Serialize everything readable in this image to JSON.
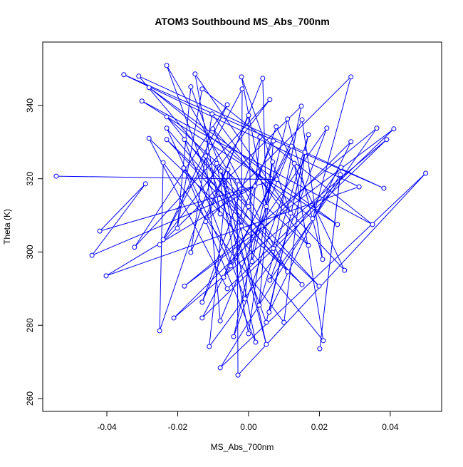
{
  "chart_data": {
    "type": "line",
    "title": "ATOM3 Southbound MS_Abs_700nm",
    "x_label": "MS_Abs_700nm",
    "y_label": "Theta (K)",
    "color": "#0000ff",
    "markers": true,
    "xlim": [
      -0.0581,
      0.0545
    ],
    "ylim": [
      256.5,
      357.3
    ],
    "xticks": [
      -0.04,
      -0.02,
      {
        "value": 0,
        "label": "0.00"
      },
      0.02,
      0.04
    ],
    "yticks": [
      260,
      280,
      300,
      320,
      340
    ],
    "x": [
      -0.0543,
      0.008,
      -0.042,
      -0.0291,
      -0.0442,
      0.0018,
      -0.0402,
      0.0312,
      -0.0352,
      0.0382,
      -0.031,
      0.0,
      -0.0231,
      -0.008,
      -0.0151,
      0.0119,
      -0.002,
      0.005,
      0.004,
      -0.0121,
      0.0289,
      0.0181,
      -0.0281,
      0.0251,
      -0.0301,
      0.035,
      -0.0131,
      -0.0201,
      -0.0163,
      -0.002,
      -0.0018,
      -0.0241,
      -0.006,
      -0.0322,
      0.006,
      -0.0251,
      0.0149,
      0.007,
      -0.0231,
      0.0169,
      -0.0103,
      -0.0163,
      0.0,
      0.001,
      0.011,
      0.0209,
      0.0151,
      -0.005,
      -0.0231,
      0.011,
      -0.0101,
      0.0271,
      0.0078,
      -0.007,
      0.0221,
      0.006,
      0.0362,
      -0.0181,
      0.041,
      -0.006,
      -0.0281,
      0.0151,
      -0.0231,
      0.0199,
      -0.0181,
      -0.001,
      0.0032,
      -0.0131,
      0.007,
      0.003,
      0.0169,
      0.0058,
      0.0289,
      -0.0211,
      0.039,
      -0.0131,
      0.0121,
      -0.008,
      -0.0121,
      0.005,
      0.0159,
      0.01,
      -0.0241,
      -0.0251,
      -0.009,
      0.0,
      0.0068,
      -0.0042,
      0.0129,
      0.0211,
      -0.0183,
      0.002,
      -0.0078,
      0.005,
      -0.0058,
      -0.0111,
      0.0261,
      0.0201,
      0.0259,
      -0.008,
      0.05,
      -0.003,
      -0.0032
    ],
    "values": [
      320.7,
      319.8,
      305.7,
      318.6,
      299.1,
      318.0,
      293.5,
      317.8,
      348.4,
      317.4,
      348.0,
      312.4,
      350.9,
      310.4,
      348.6,
      310.6,
      347.8,
      312.4,
      347.4,
      308.3,
      347.8,
      309.1,
      344.9,
      307.5,
      341.2,
      307.5,
      344.5,
      306.5,
      345.1,
      307.1,
      344.5,
      303.4,
      340.2,
      301.3,
      341.6,
      302.0,
      339.8,
      301.0,
      336.9,
      301.8,
      337.7,
      299.9,
      337.3,
      297.4,
      336.3,
      298.0,
      336.1,
      296.2,
      333.8,
      294.6,
      333.6,
      295.0,
      334.2,
      293.1,
      333.8,
      292.3,
      333.8,
      290.7,
      333.6,
      290.0,
      331.0,
      291.1,
      330.7,
      290.7,
      330.7,
      287.2,
      331.4,
      286.3,
      330.3,
      285.5,
      332.0,
      283.6,
      330.1,
      282.0,
      330.7,
      282.0,
      328.9,
      281.2,
      326.2,
      280.8,
      327.2,
      280.8,
      324.4,
      278.5,
      324.2,
      277.7,
      324.6,
      276.9,
      324.2,
      275.8,
      322.9,
      275.4,
      322.1,
      274.8,
      322.5,
      274.2,
      323.1,
      273.6,
      321.1,
      268.4,
      321.5,
      266.4,
      319.4
    ]
  }
}
